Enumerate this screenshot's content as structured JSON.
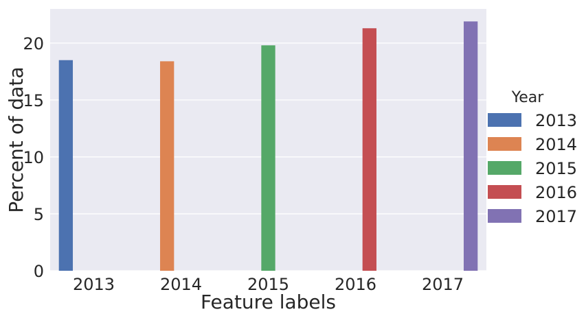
{
  "chart_data": {
    "type": "bar",
    "categories": [
      "2013",
      "2014",
      "2015",
      "2016",
      "2017"
    ],
    "series": [
      {
        "name": "2013",
        "color": "#4c72b0",
        "values": [
          18.5,
          0,
          0,
          0,
          0
        ]
      },
      {
        "name": "2014",
        "color": "#dd8452",
        "values": [
          0,
          18.4,
          0,
          0,
          0
        ]
      },
      {
        "name": "2015",
        "color": "#55a868",
        "values": [
          0,
          0,
          19.8,
          0,
          0
        ]
      },
      {
        "name": "2016",
        "color": "#c44e52",
        "values": [
          0,
          0,
          0,
          21.3,
          0
        ]
      },
      {
        "name": "2017",
        "color": "#8172b3",
        "values": [
          0,
          0,
          0,
          0,
          21.9
        ]
      }
    ],
    "xlabel": "Feature labels",
    "ylabel": "Percent of data",
    "ylim": [
      0,
      23
    ],
    "yticks": [
      0,
      5,
      10,
      15,
      20
    ],
    "grid": true,
    "background": "#eaeaf2",
    "legend": {
      "title": "Year",
      "placement": "right"
    }
  }
}
